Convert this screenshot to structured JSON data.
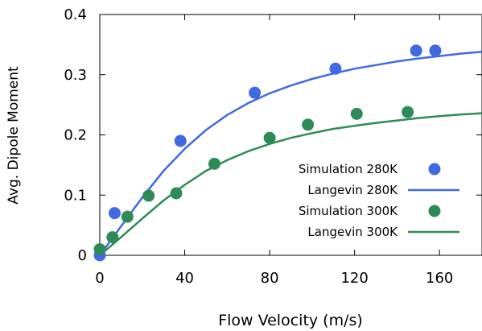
{
  "chart_data": {
    "type": "scatter",
    "title": "",
    "xlabel": "Flow Velocity (m/s)",
    "ylabel": "Avg. Dipole Moment",
    "xlim": [
      0,
      180
    ],
    "ylim": [
      0,
      0.4
    ],
    "xticks": [
      0,
      40,
      80,
      120,
      160
    ],
    "xtick_labels": [
      "0",
      "40",
      "80",
      "120",
      "160"
    ],
    "yticks": [
      0,
      0.1,
      0.2,
      0.3,
      0.4
    ],
    "ytick_labels": [
      "0",
      "0.1",
      "0.2",
      "0.3",
      "0.4"
    ],
    "grid": false,
    "legend_position": "right",
    "series": [
      {
        "name": "Simulation 280K",
        "kind": "points",
        "color": "#4169e1",
        "x": [
          0,
          7,
          38,
          73,
          111,
          149,
          158
        ],
        "y": [
          0.0,
          0.07,
          0.19,
          0.27,
          0.31,
          0.34,
          0.34
        ]
      },
      {
        "name": "Langevin 280K",
        "kind": "line",
        "color": "#4169e1",
        "x": [
          0,
          10,
          20,
          30,
          40,
          50,
          60,
          70,
          80,
          90,
          100,
          110,
          120,
          130,
          140,
          150,
          160,
          170,
          180
        ],
        "y": [
          0.0,
          0.048,
          0.096,
          0.14,
          0.177,
          0.208,
          0.233,
          0.253,
          0.269,
          0.282,
          0.293,
          0.302,
          0.31,
          0.316,
          0.322,
          0.327,
          0.331,
          0.335,
          0.338
        ]
      },
      {
        "name": "Simulation 300K",
        "kind": "points",
        "color": "#2e8b57",
        "x": [
          0,
          6,
          13,
          23,
          36,
          54,
          80,
          98,
          121,
          145
        ],
        "y": [
          0.01,
          0.03,
          0.064,
          0.099,
          0.103,
          0.152,
          0.195,
          0.217,
          0.235,
          0.238
        ]
      },
      {
        "name": "Langevin 300K",
        "kind": "line",
        "color": "#2e8b57",
        "x": [
          0,
          10,
          20,
          30,
          40,
          50,
          60,
          70,
          80,
          90,
          100,
          110,
          120,
          130,
          140,
          150,
          160,
          170,
          180
        ],
        "y": [
          0.0,
          0.03,
          0.061,
          0.091,
          0.117,
          0.14,
          0.158,
          0.173,
          0.185,
          0.195,
          0.203,
          0.21,
          0.215,
          0.22,
          0.224,
          0.228,
          0.231,
          0.234,
          0.236
        ]
      }
    ]
  }
}
